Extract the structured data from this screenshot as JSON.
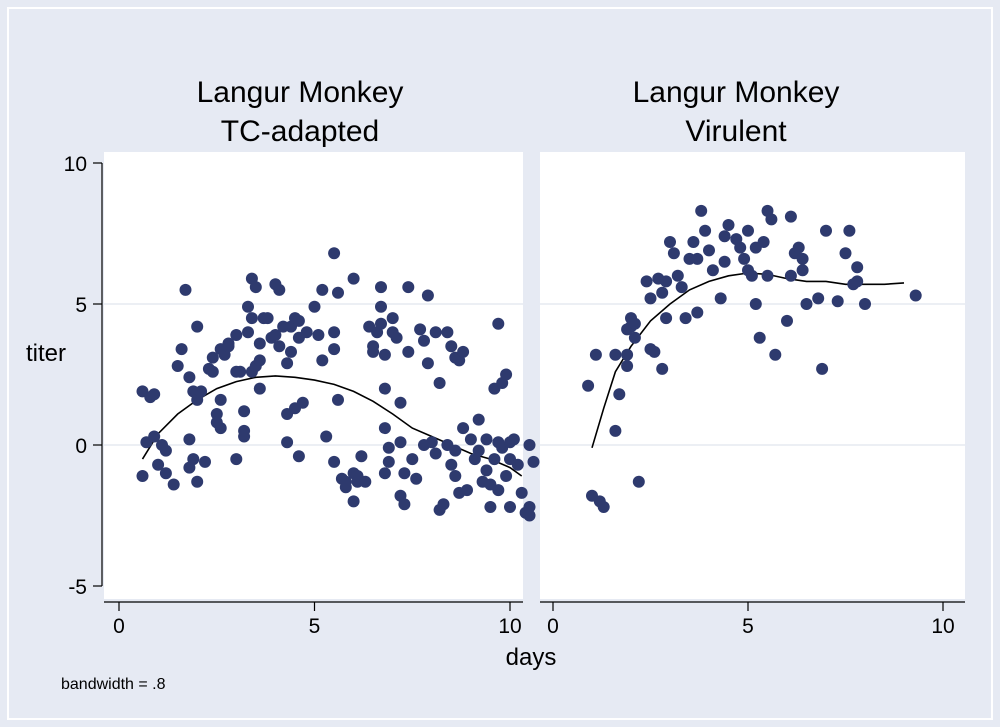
{
  "chart_data": {
    "type": "scatter",
    "xlabel": "days",
    "ylabel": "titer",
    "note": "bandwidth = .8",
    "xlim": [
      0,
      10
    ],
    "ylim": [
      -5,
      10
    ],
    "xticks": [
      0,
      5,
      10
    ],
    "yticks": [
      -5,
      0,
      5,
      10
    ],
    "grid": true,
    "marker_color": "#2e3a6e",
    "panels": [
      {
        "title": [
          "Langur Monkey",
          "TC-adapted"
        ],
        "points": [
          [
            0.6,
            1.9
          ],
          [
            0.6,
            -1.1
          ],
          [
            0.7,
            0.1
          ],
          [
            0.8,
            1.7
          ],
          [
            0.9,
            0.3
          ],
          [
            0.9,
            1.8
          ],
          [
            1.0,
            -0.7
          ],
          [
            1.1,
            0.0
          ],
          [
            1.2,
            -0.2
          ],
          [
            1.2,
            -1.0
          ],
          [
            1.4,
            -1.4
          ],
          [
            1.5,
            2.8
          ],
          [
            1.6,
            3.4
          ],
          [
            1.7,
            5.5
          ],
          [
            1.8,
            2.4
          ],
          [
            1.8,
            0.2
          ],
          [
            1.8,
            -0.8
          ],
          [
            1.9,
            1.9
          ],
          [
            1.9,
            -0.5
          ],
          [
            2.0,
            4.2
          ],
          [
            2.0,
            1.6
          ],
          [
            2.0,
            -1.3
          ],
          [
            2.1,
            1.9
          ],
          [
            2.2,
            -0.6
          ],
          [
            2.3,
            2.7
          ],
          [
            2.4,
            3.1
          ],
          [
            2.4,
            2.6
          ],
          [
            2.5,
            1.1
          ],
          [
            2.5,
            0.8
          ],
          [
            2.6,
            3.4
          ],
          [
            2.6,
            1.6
          ],
          [
            2.6,
            0.6
          ],
          [
            2.7,
            3.2
          ],
          [
            2.8,
            3.6
          ],
          [
            2.8,
            3.5
          ],
          [
            3.0,
            2.6
          ],
          [
            3.0,
            -0.5
          ],
          [
            3.0,
            3.9
          ],
          [
            3.1,
            2.6
          ],
          [
            3.2,
            1.2
          ],
          [
            3.2,
            0.5
          ],
          [
            3.2,
            0.3
          ],
          [
            3.3,
            4.9
          ],
          [
            3.3,
            4.0
          ],
          [
            3.4,
            5.9
          ],
          [
            3.4,
            4.5
          ],
          [
            3.4,
            2.6
          ],
          [
            3.5,
            5.6
          ],
          [
            3.5,
            2.8
          ],
          [
            3.6,
            3.6
          ],
          [
            3.6,
            3.0
          ],
          [
            3.6,
            2.0
          ],
          [
            3.7,
            4.5
          ],
          [
            3.8,
            4.5
          ],
          [
            3.9,
            3.8
          ],
          [
            4.0,
            5.7
          ],
          [
            4.0,
            3.9
          ],
          [
            4.1,
            5.5
          ],
          [
            4.1,
            3.5
          ],
          [
            4.2,
            4.2
          ],
          [
            4.3,
            2.9
          ],
          [
            4.3,
            1.1
          ],
          [
            4.3,
            0.1
          ],
          [
            4.4,
            3.3
          ],
          [
            4.4,
            4.2
          ],
          [
            4.5,
            4.5
          ],
          [
            4.5,
            1.3
          ],
          [
            4.6,
            3.8
          ],
          [
            4.6,
            4.4
          ],
          [
            4.6,
            -0.4
          ],
          [
            4.7,
            1.5
          ],
          [
            4.8,
            4.0
          ],
          [
            5.0,
            4.9
          ],
          [
            5.1,
            3.9
          ],
          [
            5.2,
            5.5
          ],
          [
            5.2,
            3.0
          ],
          [
            5.3,
            0.3
          ],
          [
            5.5,
            6.8
          ],
          [
            5.5,
            4.0
          ],
          [
            5.5,
            3.4
          ],
          [
            5.5,
            -0.6
          ],
          [
            5.6,
            5.4
          ],
          [
            5.6,
            1.6
          ],
          [
            5.7,
            -1.2
          ],
          [
            5.8,
            -1.5
          ],
          [
            5.8,
            -1.3
          ],
          [
            6.0,
            5.9
          ],
          [
            6.0,
            -1.0
          ],
          [
            6.0,
            -2.0
          ],
          [
            6.1,
            -1.3
          ],
          [
            6.1,
            -1.1
          ],
          [
            6.2,
            -0.4
          ],
          [
            6.3,
            -1.3
          ],
          [
            6.4,
            4.2
          ],
          [
            6.5,
            3.5
          ],
          [
            6.5,
            3.3
          ],
          [
            6.6,
            4.0
          ],
          [
            6.7,
            5.6
          ],
          [
            6.7,
            4.9
          ],
          [
            6.7,
            4.3
          ],
          [
            6.8,
            3.2
          ],
          [
            6.8,
            2.0
          ],
          [
            6.8,
            0.6
          ],
          [
            6.8,
            -1.0
          ],
          [
            6.9,
            -0.1
          ],
          [
            6.9,
            -0.6
          ],
          [
            7.0,
            4.5
          ],
          [
            7.0,
            4.0
          ],
          [
            7.1,
            3.8
          ],
          [
            7.2,
            1.5
          ],
          [
            7.2,
            0.1
          ],
          [
            7.2,
            -1.8
          ],
          [
            7.3,
            -2.1
          ],
          [
            7.3,
            -1.0
          ],
          [
            7.4,
            5.6
          ],
          [
            7.4,
            3.3
          ],
          [
            7.5,
            -0.5
          ],
          [
            7.6,
            -1.2
          ],
          [
            7.7,
            4.1
          ],
          [
            7.8,
            3.7
          ],
          [
            7.8,
            0.0
          ],
          [
            7.9,
            5.3
          ],
          [
            7.9,
            2.9
          ],
          [
            8.0,
            0.1
          ],
          [
            8.1,
            4.0
          ],
          [
            8.1,
            -0.3
          ],
          [
            8.2,
            2.2
          ],
          [
            8.2,
            -2.3
          ],
          [
            8.3,
            -2.1
          ],
          [
            8.4,
            4.0
          ],
          [
            8.4,
            0.0
          ],
          [
            8.5,
            3.5
          ],
          [
            8.5,
            -0.7
          ],
          [
            8.6,
            3.1
          ],
          [
            8.6,
            -1.1
          ],
          [
            8.6,
            -0.2
          ],
          [
            8.7,
            3.0
          ],
          [
            8.7,
            -1.7
          ],
          [
            8.8,
            3.3
          ],
          [
            8.8,
            0.6
          ],
          [
            8.9,
            -1.6
          ],
          [
            9.0,
            0.2
          ],
          [
            9.1,
            -0.5
          ],
          [
            9.2,
            0.9
          ],
          [
            9.2,
            -0.2
          ],
          [
            9.3,
            -1.3
          ],
          [
            9.4,
            0.2
          ],
          [
            9.4,
            -0.9
          ],
          [
            9.5,
            -1.4
          ],
          [
            9.5,
            -2.2
          ],
          [
            9.6,
            2.0
          ],
          [
            9.6,
            -0.5
          ],
          [
            9.7,
            4.3
          ],
          [
            9.7,
            0.1
          ],
          [
            9.7,
            -1.6
          ],
          [
            9.8,
            2.2
          ],
          [
            9.8,
            -0.1
          ],
          [
            9.9,
            2.5
          ],
          [
            9.9,
            -1.1
          ],
          [
            10.0,
            0.1
          ],
          [
            10.0,
            -0.5
          ],
          [
            10.0,
            -2.2
          ],
          [
            10.1,
            0.2
          ],
          [
            10.2,
            -0.7
          ],
          [
            10.3,
            -1.7
          ],
          [
            10.4,
            -2.4
          ],
          [
            10.5,
            0.0
          ],
          [
            10.5,
            -2.2
          ],
          [
            10.5,
            -2.5
          ],
          [
            10.6,
            -0.6
          ]
        ],
        "smooth": [
          [
            0.6,
            -0.5
          ],
          [
            1.0,
            0.4
          ],
          [
            1.5,
            1.1
          ],
          [
            2.0,
            1.6
          ],
          [
            2.5,
            2.0
          ],
          [
            3.0,
            2.25
          ],
          [
            3.5,
            2.4
          ],
          [
            4.0,
            2.45
          ],
          [
            4.5,
            2.4
          ],
          [
            5.0,
            2.3
          ],
          [
            5.5,
            2.15
          ],
          [
            6.0,
            1.9
          ],
          [
            6.5,
            1.55
          ],
          [
            7.0,
            1.1
          ],
          [
            7.5,
            0.6
          ],
          [
            8.0,
            0.3
          ],
          [
            8.5,
            0.0
          ],
          [
            9.0,
            -0.3
          ],
          [
            9.5,
            -0.5
          ],
          [
            10.0,
            -0.8
          ],
          [
            10.3,
            -1.1
          ]
        ]
      },
      {
        "title": [
          "Langur Monkey",
          "Virulent"
        ],
        "points": [
          [
            0.9,
            2.1
          ],
          [
            1.0,
            -1.8
          ],
          [
            1.1,
            3.2
          ],
          [
            1.2,
            -2.0
          ],
          [
            1.3,
            -2.2
          ],
          [
            1.6,
            3.2
          ],
          [
            1.6,
            0.5
          ],
          [
            1.7,
            1.8
          ],
          [
            1.9,
            2.8
          ],
          [
            1.9,
            3.2
          ],
          [
            1.9,
            4.1
          ],
          [
            2.0,
            4.5
          ],
          [
            2.0,
            4.2
          ],
          [
            2.1,
            3.8
          ],
          [
            2.1,
            4.3
          ],
          [
            2.2,
            -1.3
          ],
          [
            2.4,
            5.8
          ],
          [
            2.5,
            5.2
          ],
          [
            2.5,
            3.4
          ],
          [
            2.6,
            3.3
          ],
          [
            2.7,
            5.9
          ],
          [
            2.8,
            2.7
          ],
          [
            2.8,
            5.4
          ],
          [
            2.9,
            5.8
          ],
          [
            2.9,
            4.5
          ],
          [
            3.0,
            7.2
          ],
          [
            3.1,
            6.8
          ],
          [
            3.2,
            6.0
          ],
          [
            3.3,
            5.6
          ],
          [
            3.4,
            4.5
          ],
          [
            3.5,
            6.6
          ],
          [
            3.6,
            7.2
          ],
          [
            3.7,
            4.7
          ],
          [
            3.7,
            6.6
          ],
          [
            3.8,
            8.3
          ],
          [
            3.9,
            7.6
          ],
          [
            4.0,
            6.9
          ],
          [
            4.1,
            6.2
          ],
          [
            4.3,
            5.2
          ],
          [
            4.4,
            7.4
          ],
          [
            4.4,
            6.5
          ],
          [
            4.5,
            7.8
          ],
          [
            4.7,
            7.3
          ],
          [
            4.8,
            7.0
          ],
          [
            4.9,
            6.6
          ],
          [
            5.0,
            7.6
          ],
          [
            5.0,
            6.2
          ],
          [
            5.1,
            6.0
          ],
          [
            5.2,
            7.0
          ],
          [
            5.2,
            5.0
          ],
          [
            5.3,
            3.8
          ],
          [
            5.4,
            7.2
          ],
          [
            5.5,
            8.3
          ],
          [
            5.5,
            6.0
          ],
          [
            5.6,
            8.0
          ],
          [
            5.7,
            3.2
          ],
          [
            6.0,
            4.4
          ],
          [
            6.1,
            8.1
          ],
          [
            6.1,
            6.0
          ],
          [
            6.2,
            6.8
          ],
          [
            6.3,
            7.0
          ],
          [
            6.4,
            6.6
          ],
          [
            6.4,
            6.2
          ],
          [
            6.5,
            5.0
          ],
          [
            6.8,
            5.2
          ],
          [
            6.9,
            2.7
          ],
          [
            7.0,
            7.6
          ],
          [
            7.3,
            5.1
          ],
          [
            7.5,
            6.8
          ],
          [
            7.6,
            7.6
          ],
          [
            7.7,
            5.7
          ],
          [
            7.8,
            6.3
          ],
          [
            7.8,
            5.8
          ],
          [
            8.0,
            5.0
          ],
          [
            9.3,
            5.3
          ]
        ],
        "smooth": [
          [
            1.0,
            -0.1
          ],
          [
            1.3,
            1.3
          ],
          [
            1.6,
            2.6
          ],
          [
            2.0,
            3.5
          ],
          [
            2.5,
            4.4
          ],
          [
            3.0,
            5.0
          ],
          [
            3.5,
            5.5
          ],
          [
            4.0,
            5.8
          ],
          [
            4.5,
            6.0
          ],
          [
            5.0,
            6.1
          ],
          [
            5.5,
            6.05
          ],
          [
            6.0,
            5.9
          ],
          [
            6.5,
            5.8
          ],
          [
            7.0,
            5.8
          ],
          [
            7.5,
            5.7
          ],
          [
            8.0,
            5.7
          ],
          [
            8.5,
            5.7
          ],
          [
            9.0,
            5.75
          ]
        ]
      }
    ]
  }
}
